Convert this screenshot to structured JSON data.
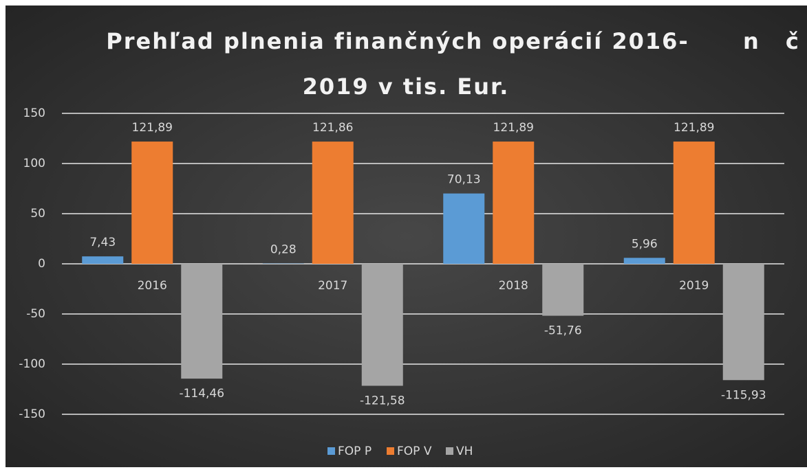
{
  "chart_data": {
    "type": "bar",
    "title": [
      "Prehľad plnenia finančných operácií 2016-",
      "2019 v tis. Eur."
    ],
    "title_overflow": "n č r",
    "categories": [
      "2016",
      "2017",
      "2018",
      "2019"
    ],
    "series": [
      {
        "name": "FOP P",
        "color": "#5b9bd5",
        "values": [
          7.43,
          0.28,
          70.13,
          5.96
        ],
        "value_labels": [
          "7,43",
          "0,28",
          "70,13",
          "5,96"
        ]
      },
      {
        "name": "FOP V",
        "color": "#ed7d31",
        "values": [
          121.89,
          121.86,
          121.89,
          121.89
        ],
        "value_labels": [
          "121,89",
          "121,86",
          "121,89",
          "121,89"
        ]
      },
      {
        "name": "VH",
        "color": "#a5a5a5",
        "values": [
          -114.46,
          -121.58,
          -51.76,
          -115.93
        ],
        "value_labels": [
          "-114,46",
          "-121,58",
          "-51,76",
          "-115,93"
        ]
      }
    ],
    "ylim": [
      -150,
      150
    ],
    "yticks": [
      -150,
      -100,
      -50,
      0,
      50,
      100,
      150
    ],
    "grid": true,
    "legend": "bottom"
  }
}
